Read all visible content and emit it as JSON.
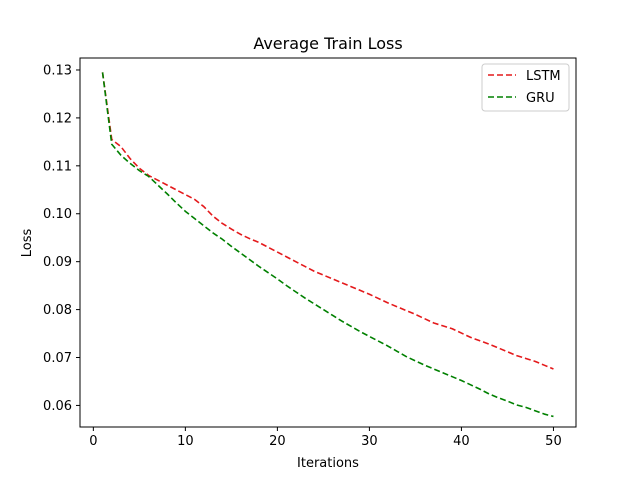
{
  "chart_data": {
    "type": "line",
    "title": "Average Train Loss",
    "xlabel": "Iterations",
    "ylabel": "Loss",
    "xlim": [
      -1.45,
      52.45
    ],
    "ylim": [
      0.0555,
      0.1325
    ],
    "xticks": [
      0,
      10,
      20,
      30,
      40,
      50
    ],
    "yticks": [
      0.06,
      0.07,
      0.08,
      0.09,
      0.1,
      0.11,
      0.12,
      0.13
    ],
    "ytick_labels": [
      "0.06",
      "0.07",
      "0.08",
      "0.09",
      "0.10",
      "0.11",
      "0.12",
      "0.13"
    ],
    "grid": false,
    "legend_position": "top-right",
    "x": [
      1,
      2,
      3,
      4,
      5,
      6,
      7,
      8,
      9,
      10,
      11,
      12,
      13,
      14,
      15,
      16,
      17,
      18,
      19,
      20,
      21,
      22,
      23,
      24,
      25,
      26,
      27,
      28,
      29,
      30,
      31,
      32,
      33,
      34,
      35,
      36,
      37,
      38,
      39,
      40,
      41,
      42,
      43,
      44,
      45,
      46,
      47,
      48,
      49,
      50
    ],
    "series": [
      {
        "name": "LSTM",
        "color": "#e41a1c",
        "style": "dashed",
        "values": [
          0.1295,
          0.1155,
          0.114,
          0.1115,
          0.1095,
          0.108,
          0.107,
          0.106,
          0.105,
          0.104,
          0.103,
          0.1015,
          0.0995,
          0.098,
          0.0968,
          0.0957,
          0.0948,
          0.094,
          0.093,
          0.092,
          0.091,
          0.09,
          0.089,
          0.088,
          0.0872,
          0.0864,
          0.0856,
          0.0848,
          0.084,
          0.0832,
          0.0823,
          0.0814,
          0.0806,
          0.0798,
          0.079,
          0.0781,
          0.0772,
          0.0766,
          0.076,
          0.0751,
          0.0742,
          0.0735,
          0.0728,
          0.072,
          0.0712,
          0.0704,
          0.0698,
          0.0692,
          0.0684,
          0.0676
        ]
      },
      {
        "name": "GRU",
        "color": "#008000",
        "style": "dashed",
        "values": [
          0.1295,
          0.1145,
          0.1122,
          0.1105,
          0.109,
          0.1078,
          0.106,
          0.1042,
          0.1023,
          0.1005,
          0.099,
          0.0975,
          0.096,
          0.0947,
          0.0932,
          0.0918,
          0.0904,
          0.089,
          0.0877,
          0.0864,
          0.085,
          0.0837,
          0.0824,
          0.0812,
          0.08,
          0.0788,
          0.0776,
          0.0765,
          0.0754,
          0.0744,
          0.0734,
          0.0724,
          0.0713,
          0.0702,
          0.0693,
          0.0684,
          0.0676,
          0.0668,
          0.066,
          0.0652,
          0.0643,
          0.0634,
          0.0624,
          0.0616,
          0.0609,
          0.0601,
          0.0596,
          0.0589,
          0.0582,
          0.0577
        ]
      }
    ]
  }
}
